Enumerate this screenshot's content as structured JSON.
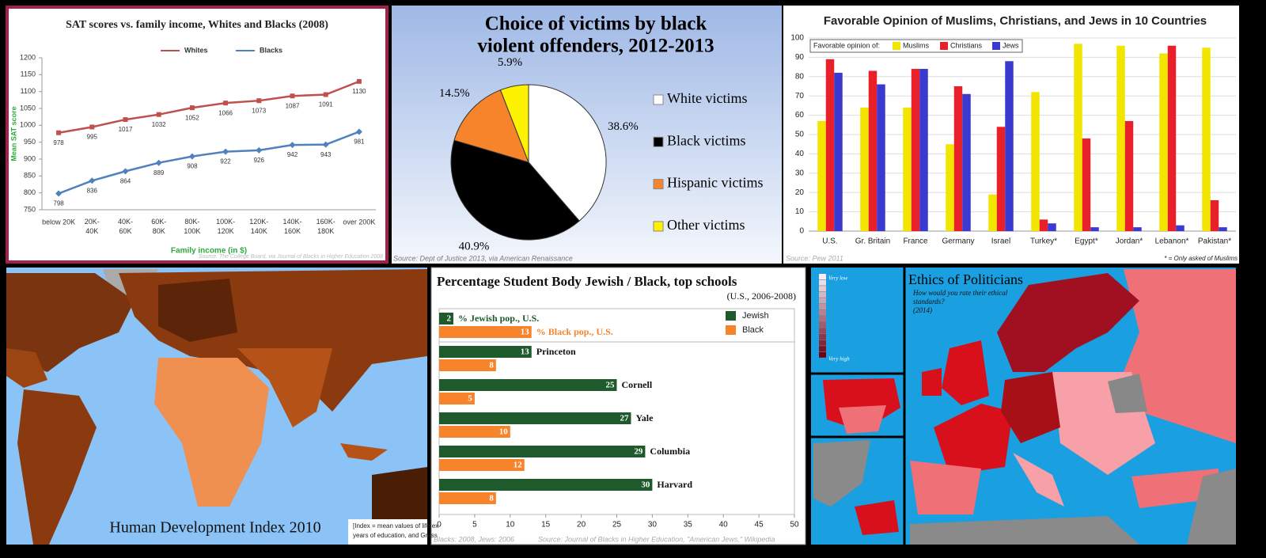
{
  "chart_data": [
    {
      "type": "line",
      "title": "SAT scores vs. family income, Whites and Blacks (2008)",
      "categories": [
        "below 20K",
        "20K-40K",
        "40K-60K",
        "60K-80K",
        "80K-100K",
        "100K-120K",
        "120K-140K",
        "140K-160K",
        "160K-180K",
        "over 200K"
      ],
      "series": [
        {
          "name": "Whites",
          "color": "#c0504d",
          "values": [
            978,
            995,
            1017,
            1032,
            1052,
            1066,
            1073,
            1087,
            1091,
            1130
          ]
        },
        {
          "name": "Blacks",
          "color": "#4f81bd",
          "values": [
            798,
            836,
            864,
            889,
            908,
            922,
            926,
            942,
            943,
            981
          ]
        }
      ],
      "ylim": [
        750,
        1200
      ],
      "yticks": [
        750,
        800,
        850,
        900,
        950,
        1000,
        1050,
        1100,
        1150,
        1200
      ],
      "xlabel": "Family income (in $)",
      "ylabel": "Mean SAT score",
      "source": "Source: The College Board, via Journal of Blacks in Higher Education 2008"
    },
    {
      "type": "pie",
      "title": "Choice of victims by black violent offenders, 2012-2013",
      "categories": [
        "White victims",
        "Black victims",
        "Hispanic victims",
        "Other victims"
      ],
      "values": [
        38.6,
        40.9,
        14.5,
        5.9
      ],
      "value_labels": [
        "38.6%",
        "40.9%",
        "14.5%",
        "5.9%"
      ],
      "colors": [
        "#ffffff",
        "#000000",
        "#f7842a",
        "#fff200"
      ],
      "source": "Source: Dept of Justice 2013, via American Renaissance"
    },
    {
      "type": "bar",
      "title": "Favorable Opinion of Muslims, Christians, and Jews in 10 Countries",
      "legend_title": "Favorable opinion of:",
      "categories": [
        "U.S.",
        "Gr. Britain",
        "France",
        "Germany",
        "Israel",
        "Turkey*",
        "Egypt*",
        "Jordan*",
        "Lebanon*",
        "Pakistan*"
      ],
      "series": [
        {
          "name": "Muslims",
          "color": "#f2e600",
          "values": [
            57,
            64,
            64,
            45,
            19,
            72,
            97,
            96,
            92,
            95
          ]
        },
        {
          "name": "Christians",
          "color": "#e8202a",
          "values": [
            89,
            83,
            84,
            75,
            54,
            6,
            48,
            57,
            96,
            16
          ]
        },
        {
          "name": "Jews",
          "color": "#3a3ad0",
          "values": [
            82,
            76,
            84,
            71,
            88,
            4,
            2,
            2,
            3,
            2
          ]
        }
      ],
      "ylim": [
        0,
        100
      ],
      "yticks": [
        0,
        10,
        20,
        30,
        40,
        50,
        60,
        70,
        80,
        90,
        100
      ],
      "grid": true,
      "source": "Source: Pew 2011",
      "note": "* = Only asked of Muslims"
    },
    {
      "type": "barh",
      "title": "Percentage Student Body Jewish / Black, top schools",
      "subtitle": "(U.S., 2006-2008)",
      "categories": [
        null,
        "Princeton",
        "Cornell",
        "Yale",
        "Columbia",
        "Harvard"
      ],
      "series": [
        {
          "name": "Jewish",
          "color": "#1e5a2c",
          "values": [
            2,
            13,
            25,
            27,
            29,
            30
          ]
        },
        {
          "name": "Black",
          "color": "#f7842a",
          "values": [
            13,
            8,
            5,
            10,
            12,
            8
          ]
        }
      ],
      "annotations": [
        "% Jewish pop., U.S.",
        "% Black pop., U.S."
      ],
      "xlim": [
        0,
        50
      ],
      "xticks": [
        0,
        5,
        10,
        15,
        20,
        25,
        30,
        35,
        40,
        45,
        50
      ],
      "notes": [
        "Blacks: 2008, Jews: 2006",
        "Source: Journal of Blacks in Higher Education, \"American Jews,\" Wikipedia"
      ]
    }
  ],
  "maps": [
    {
      "title": "Human Development Index 2010",
      "note": [
        "[Index = mean values of life ex",
        "years of education, and Gross"
      ]
    },
    {
      "title": "Ethics of Politicians",
      "subtitle": [
        "How would you rate their ethical",
        "standards?",
        "(2014)"
      ],
      "legend": [
        "Very low",
        "Very high"
      ]
    }
  ]
}
